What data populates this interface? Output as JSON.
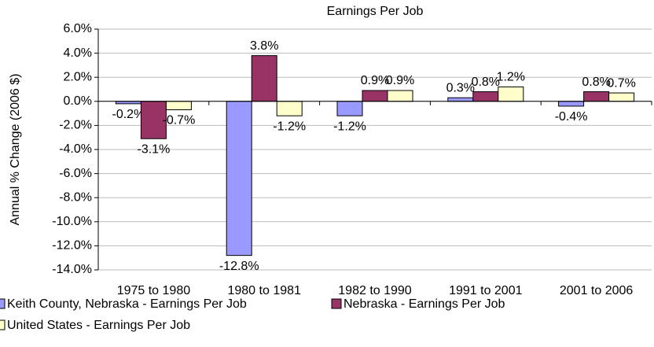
{
  "chart_data": {
    "type": "bar",
    "title": "Earnings Per Job",
    "y_label": "Annual % Change (2006 $)",
    "categories": [
      "1975 to 1980",
      "1980 to 1981",
      "1982 to 1990",
      "1991 to 2001",
      "2001 to 2006"
    ],
    "series": [
      {
        "name": "Keith County, Nebraska - Earnings Per Job",
        "color": "#9999ff",
        "values": [
          -0.2,
          -12.8,
          -1.2,
          0.3,
          -0.4
        ],
        "value_labels": [
          "-0.2%",
          "-12.8%",
          "-1.2%",
          "0.3%",
          "-0.4%"
        ]
      },
      {
        "name": "Nebraska - Earnings Per Job",
        "color": "#993366",
        "values": [
          -3.1,
          3.8,
          0.9,
          0.8,
          0.8
        ],
        "value_labels": [
          "-3.1%",
          "3.8%",
          "0.9%",
          "0.8%",
          "0.8%"
        ]
      },
      {
        "name": "United States - Earnings Per Job",
        "color": "#ffffcc",
        "values": [
          -0.7,
          -1.2,
          0.9,
          1.2,
          0.7
        ],
        "value_labels": [
          "-0.7%",
          "-1.2%",
          "0.9%",
          "1.2%",
          "0.7%"
        ]
      }
    ],
    "ylim": [
      -14,
      6
    ],
    "yticks": [
      {
        "value": -14,
        "label": "-14.0%"
      },
      {
        "value": -12,
        "label": "-12.0%"
      },
      {
        "value": -10,
        "label": "-10.0%"
      },
      {
        "value": -8,
        "label": "-8.0%"
      },
      {
        "value": -6,
        "label": "-6.0%"
      },
      {
        "value": -4,
        "label": "-4.0%"
      },
      {
        "value": -2,
        "label": "-2.0%"
      },
      {
        "value": 0,
        "label": "0.0%"
      },
      {
        "value": 2,
        "label": "2.0%"
      },
      {
        "value": 4,
        "label": "4.0%"
      },
      {
        "value": 6,
        "label": "6.0%"
      }
    ],
    "grid": true,
    "legend": "bottom"
  }
}
